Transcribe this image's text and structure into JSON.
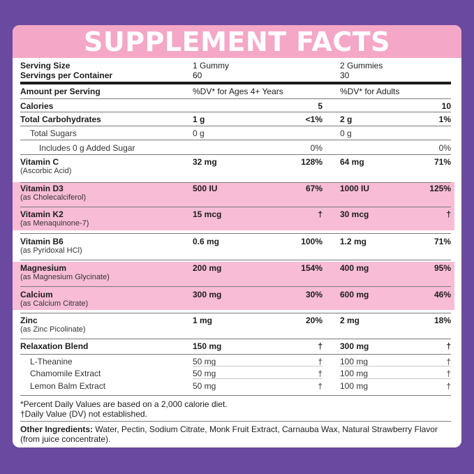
{
  "title": "SUPPLEMENT FACTS",
  "header": {
    "serving_size_label": "Serving Size",
    "servings_per_container_label": "Servings per Container",
    "col1_serving": "1 Gummy",
    "col1_servings": "60",
    "col2_serving": "2 Gummies",
    "col2_servings": "30"
  },
  "amount_row": {
    "label": "Amount per Serving",
    "col1": "%DV* for Ages 4+ Years",
    "col2": "%DV* for Adults"
  },
  "rows": [
    {
      "name": "Calories",
      "sub": "",
      "a1": "",
      "d1": "5",
      "a2": "",
      "d2": "10",
      "bold": true
    },
    {
      "name": "Total Carbohydrates",
      "sub": "",
      "a1": "1 g",
      "d1": "<1%",
      "a2": "2 g",
      "d2": "1%",
      "bold": true
    },
    {
      "name": "Total Sugars",
      "sub": "",
      "a1": "0 g",
      "d1": "",
      "a2": "0 g",
      "d2": "",
      "bold": false
    },
    {
      "name": "Includes 0 g Added Sugar",
      "sub": "",
      "a1": "",
      "d1": "0%",
      "a2": "",
      "d2": "0%",
      "bold": false
    },
    {
      "name": "Vitamin C",
      "sub": "(Ascorbic Acid)",
      "a1": "32 mg",
      "d1": "128%",
      "a2": "64 mg",
      "d2": "71%",
      "bold": true
    },
    {
      "name": "Vitamin D3",
      "sub": "(as Cholecalciferol)",
      "a1": "500 IU",
      "d1": "67%",
      "a2": "1000 IU",
      "d2": "125%",
      "bold": true
    },
    {
      "name": "Vitamin K2",
      "sub": "(as Menaquinone-7)",
      "a1": "15 mcg",
      "d1": "†",
      "a2": "30 mcg",
      "d2": "†",
      "bold": true
    },
    {
      "name": "Vitamin B6",
      "sub": "(as Pyridoxal HCl)",
      "a1": "0.6 mg",
      "d1": "100%",
      "a2": "1.2 mg",
      "d2": "71%",
      "bold": true
    },
    {
      "name": "Magnesium",
      "sub": "(as Magnesium Glycinate)",
      "a1": "200 mg",
      "d1": "154%",
      "a2": "400 mg",
      "d2": "95%",
      "bold": true
    },
    {
      "name": "Calcium",
      "sub": "(as Calcium Citrate)",
      "a1": "300 mg",
      "d1": "30%",
      "a2": "600 mg",
      "d2": "46%",
      "bold": true
    },
    {
      "name": "Zinc",
      "sub": "(as Zinc Picolinate)",
      "a1": "1 mg",
      "d1": "20%",
      "a2": "2 mg",
      "d2": "18%",
      "bold": true
    },
    {
      "name": "Relaxation Blend",
      "sub": "",
      "a1": "150 mg",
      "d1": "†",
      "a2": "300 mg",
      "d2": "†",
      "bold": true
    },
    {
      "name": "L-Theanine",
      "sub": "",
      "a1": "50 mg",
      "d1": "†",
      "a2": "100 mg",
      "d2": "†",
      "bold": false
    },
    {
      "name": "Chamomile Extract",
      "sub": "",
      "a1": "50 mg",
      "d1": "†",
      "a2": "100 mg",
      "d2": "†",
      "bold": false
    },
    {
      "name": "Lemon Balm Extract",
      "sub": "",
      "a1": "50 mg",
      "d1": "†",
      "a2": "100 mg",
      "d2": "†",
      "bold": false
    }
  ],
  "footnotes": {
    "dv_note": "*Percent Daily Values are based on a 2,000 calorie diet.",
    "dagger_note": "†Daily Value (DV) not established."
  },
  "other_ingredients": {
    "label": "Other Ingredients:",
    "text": " Water, Pectin, Sodium Citrate, Monk Fruit Extract, Carnauba Wax, Natural Strawberry Flavor",
    "text2": "(from juice concentrate)."
  },
  "colors": {
    "background": "#6a4aa0",
    "title_bar": "#f4a7c6",
    "highlight": "#f8bcd6"
  }
}
